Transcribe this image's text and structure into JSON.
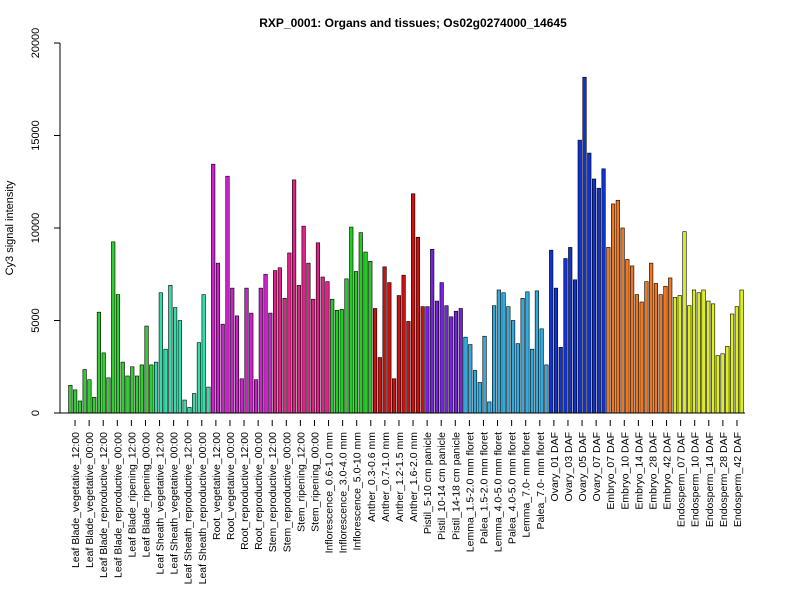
{
  "chart_data": {
    "type": "bar",
    "title": "RXP_0001: Organs and tissues; Os02g0274000_14645",
    "xlabel": "",
    "ylabel": "Cy3 signal intensity",
    "ylim": [
      0,
      20000
    ],
    "yticks": [
      0,
      5000,
      10000,
      15000,
      20000
    ],
    "grid": false,
    "tick_labels": [
      "Leaf Blade_vegetative_12:00",
      "Leaf Blade_vegetative_00:00",
      "Leaf Blade_reproductive_12:00",
      "Leaf Blade_reproductive_00:00",
      "Leaf Blade_ripening_12:00",
      "Leaf Blade_ripening_00:00",
      "Leaf Sheath_vegetative_12:00",
      "Leaf Sheath_vegetative_00:00",
      "Leaf Sheath_reproductive_12:00",
      "Leaf Sheath_reproductive_00:00",
      "Root_vegetative_12:00",
      "Root_vegetative_00:00",
      "Root_reproductive_12:00",
      "Root_reproductive_00:00",
      "Stem_reproductive_12:00",
      "Stem_reproductive_00:00",
      "Stem_ripening_12:00",
      "Stem_ripening_00:00",
      "Inflorescence_0.6-1.0 mm",
      "Inflorescence_3.0-4.0 mm",
      "Inflorescence_5.0-10 mm",
      "Anther_0.3-0.6 mm",
      "Anther_0.7-1.0 mm",
      "Anther_1.2-1.5 mm",
      "Anther_1.6-2.0 mm",
      "Pistil_5-10 cm panicle",
      "Pistil_10-14 cm panicle",
      "Pistil_14-18 cm panicle",
      "Lemma_1.5-2.0 mm floret",
      "Palea_1.5-2.0 mm floret",
      "Lemma_4.0-5.0 mm floret",
      "Palea_4.0-5.0 mm floret",
      "Lemma_7.0- mm floret",
      "Palea_7.0- mm floret",
      "Ovary_01 DAF",
      "Ovary_03 DAF",
      "Ovary_05 DAF",
      "Ovary_07 DAF",
      "Embryo_07 DAF",
      "Embryo_10 DAF",
      "Embryo_14 DAF",
      "Embryo_28 DAF",
      "Embryo_42 DAF",
      "Endosperm_07 DAF",
      "Endosperm_10 DAF",
      "Endosperm_14 DAF",
      "Endosperm_28 DAF",
      "Endosperm_42 DAF"
    ],
    "groups": [
      {
        "color": "#33cc33",
        "values": [
          1500,
          1250,
          650,
          2350,
          1800,
          850,
          5450,
          3250,
          1900,
          9250,
          6400,
          2750,
          2000,
          2500,
          2000,
          2600,
          4700,
          2600
        ]
      },
      {
        "color": "#33ddaa",
        "values": [
          2750,
          6500,
          3450,
          6900,
          5700,
          5000,
          700,
          300,
          1050,
          3800,
          6400,
          1400
        ]
      },
      {
        "color": "#cc22cc",
        "values": [
          13450,
          8100,
          4800,
          12800,
          6750,
          5250,
          1850,
          6750,
          5400,
          1800,
          6750,
          7500,
          5400
        ]
      },
      {
        "color": "#dd2288",
        "values": [
          7700,
          7850,
          6200,
          8650,
          12600,
          6900,
          10100,
          8100,
          6150,
          9200,
          7350,
          7100
        ]
      },
      {
        "color": "#22cc22",
        "values": [
          6150,
          5550,
          5600,
          7250,
          10050,
          7650,
          9750,
          8700,
          8200
        ]
      },
      {
        "color": "#cc1111",
        "values": [
          5650,
          3000,
          7900,
          7050,
          1850,
          6350,
          7450,
          4950,
          11850,
          9500,
          5750
        ]
      },
      {
        "color": "#7722dd",
        "values": [
          5750,
          8850,
          6050,
          7050,
          5800,
          5200,
          5500,
          5650
        ]
      },
      {
        "color": "#33aadd",
        "values": [
          4100,
          3700,
          2300,
          1650,
          4150,
          600,
          5800,
          6650,
          6500,
          5750,
          5000,
          3750,
          6200,
          6550,
          3450,
          6600,
          4550,
          2600
        ]
      },
      {
        "color": "#1133cc",
        "values": [
          8800,
          6750,
          3550,
          8350,
          8950,
          7200,
          14750,
          18150,
          14050,
          12650,
          12150,
          13200
        ]
      },
      {
        "color": "#ee7722",
        "values": [
          8950,
          11300,
          11500,
          10000,
          8300,
          7950,
          6400,
          6000,
          7100,
          8100,
          7000,
          6400,
          6850,
          7300
        ]
      },
      {
        "color": "#ddee22",
        "values": [
          6250,
          6350,
          9800,
          5800,
          6650,
          6500,
          6650,
          6050,
          5900,
          3100,
          3200,
          3600,
          5350,
          5750,
          6650
        ]
      }
    ]
  }
}
